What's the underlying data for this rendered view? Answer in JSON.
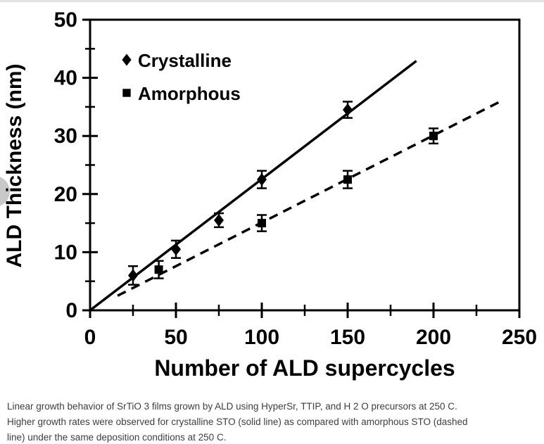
{
  "colors": {
    "ink": "#000000",
    "background": "#ffffff",
    "caption_text": "#3e3e3e",
    "nav_bubble": "#c8c8c8",
    "top_strip": "#e2e2e2"
  },
  "chart_data": {
    "type": "scatter",
    "title": "",
    "xlabel": "Number of ALD supercycles",
    "ylabel": "ALD Thickness (nm)",
    "xlim": [
      0,
      250
    ],
    "ylim": [
      0,
      50
    ],
    "x_major_ticks": [
      0,
      50,
      100,
      150,
      200,
      250
    ],
    "x_minor_ticks": [
      25,
      75,
      125,
      175,
      225
    ],
    "y_major_ticks": [
      0,
      10,
      20,
      30,
      40,
      50
    ],
    "y_minor_ticks": [
      5,
      15,
      25,
      35,
      45
    ],
    "grid": false,
    "legend_position": "upper-left-inside",
    "series": [
      {
        "name": "Crystalline",
        "marker": "diamond",
        "line_style": "solid",
        "x": [
          25,
          50,
          75,
          100,
          150
        ],
        "y": [
          6.0,
          10.5,
          15.5,
          22.5,
          34.5
        ],
        "y_err": [
          1.6,
          1.5,
          1.2,
          1.5,
          1.4
        ],
        "fit_line": {
          "x1": 0,
          "y1": 0,
          "x2": 190,
          "y2": 42.9
        }
      },
      {
        "name": "Amorphous",
        "marker": "square",
        "line_style": "dashed",
        "x": [
          40,
          100,
          150,
          200
        ],
        "y": [
          7.0,
          15.0,
          22.5,
          30.0
        ],
        "y_err": [
          1.5,
          1.4,
          1.5,
          1.3
        ],
        "fit_line": {
          "x1": 16,
          "y1": 2.5,
          "x2": 238,
          "y2": 35.8
        }
      }
    ]
  },
  "caption": {
    "lines": [
      "Linear growth behavior of SrTiO 3 films grown by ALD using HyperSr, TTIP, and H 2 O precursors at 250 C.",
      "Higher growth rates were observed for crystalline STO (solid line) as compared with amorphous STO (dashed",
      "line) under the same deposition conditions at 250 C."
    ]
  }
}
